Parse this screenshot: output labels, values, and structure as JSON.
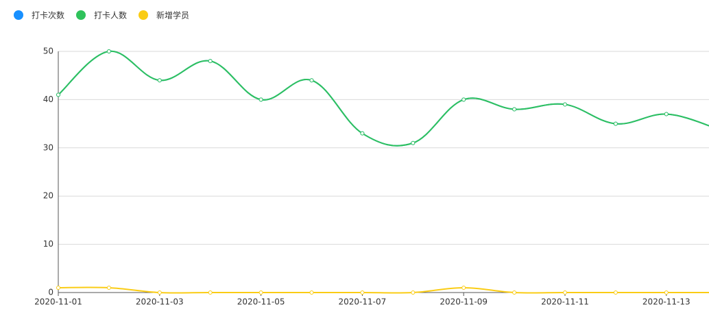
{
  "chart_data": {
    "type": "line",
    "categories": [
      "2020-11-01",
      null,
      "2020-11-03",
      null,
      "2020-11-05",
      null,
      "2020-11-07",
      null,
      "2020-11-09",
      null,
      "2020-11-11",
      null,
      "2020-11-13",
      null
    ],
    "series": [
      {
        "name": "打卡次数",
        "color": "#1890ff",
        "values": [
          41,
          50,
          44,
          48,
          40,
          44,
          33,
          31,
          40,
          38,
          39,
          35,
          37,
          34
        ]
      },
      {
        "name": "打卡人数",
        "color": "#2fc25b",
        "values": [
          41,
          50,
          44,
          48,
          40,
          44,
          33,
          31,
          40,
          38,
          39,
          35,
          37,
          34
        ]
      },
      {
        "name": "新增学员",
        "color": "#facc14",
        "values": [
          1,
          1,
          0,
          0,
          0,
          0,
          0,
          0,
          1,
          0,
          0,
          0,
          0,
          0
        ]
      }
    ],
    "ylim": [
      0,
      50
    ],
    "yticks": [
      0,
      10,
      20,
      30,
      40,
      50
    ],
    "grid": true,
    "legend": "top-left",
    "smooth": true
  }
}
